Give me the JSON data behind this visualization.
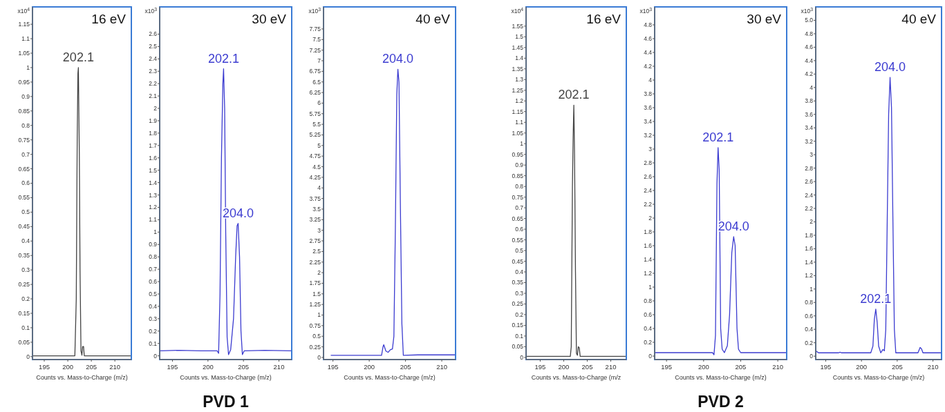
{
  "chart_data": [
    {
      "type": "line",
      "title": "16 eV",
      "xlabel": "Counts vs. Mass-to-Charge (m/z)",
      "ylabel": "x10$^{4}$",
      "xlim": [
        192.5,
        213.5
      ],
      "xticks": [
        195,
        200,
        205,
        210
      ],
      "ylim": [
        -0.01,
        1.21
      ],
      "yticks": [
        0,
        0.05,
        0.1,
        0.15,
        0.2,
        0.25,
        0.3,
        0.35,
        0.4,
        0.45,
        0.5,
        0.55,
        0.6,
        0.65,
        0.7,
        0.75,
        0.8,
        0.85,
        0.9,
        0.95,
        1,
        1.05,
        1.1,
        1.15
      ],
      "series": [
        {
          "color": "#444444",
          "x": [
            192.5,
            201.5,
            201.8,
            202.0,
            202.15,
            202.25,
            202.45,
            202.6,
            202.8,
            203.0,
            203.15,
            203.35,
            203.5,
            213.5
          ],
          "values": [
            0.003,
            0.003,
            0.2,
            0.75,
            0.98,
            1.0,
            0.7,
            0.3,
            0.02,
            0.005,
            0.035,
            0.035,
            0.003,
            0.003
          ]
        }
      ],
      "annotations": [
        {
          "text": "202.1",
          "x": 202.25,
          "y": 1.0
        }
      ]
    },
    {
      "type": "line",
      "title": "30 eV",
      "xlabel": "Counts vs. Mass-to-Charge (m/z)",
      "ylabel": "x10$^{3}$",
      "xlim": [
        193.2,
        211.8
      ],
      "xticks": [
        195,
        200,
        205,
        210
      ],
      "ylim": [
        -0.03,
        2.82
      ],
      "yticks": [
        0,
        0.1,
        0.2,
        0.3,
        0.4,
        0.5,
        0.6,
        0.7,
        0.8,
        0.9,
        1,
        1.1,
        1.2,
        1.3,
        1.4,
        1.5,
        1.6,
        1.7,
        1.8,
        1.9,
        2,
        2.1,
        2.2,
        2.3,
        2.4,
        2.5,
        2.6
      ],
      "series": [
        {
          "color": "#3b3bd0",
          "x": [
            193.2,
            196,
            199,
            201.3,
            201.5,
            201.7,
            201.9,
            202.1,
            202.2,
            202.35,
            202.5,
            202.7,
            202.9,
            203.2,
            203.6,
            203.9,
            204.1,
            204.25,
            204.45,
            204.65,
            204.85,
            205.1,
            208,
            211.8
          ],
          "values": [
            0.04,
            0.045,
            0.04,
            0.04,
            0.02,
            0.5,
            1.6,
            2.2,
            2.32,
            2.0,
            1.0,
            0.15,
            0.01,
            0.05,
            0.3,
            0.8,
            1.05,
            1.07,
            0.8,
            0.2,
            0.01,
            0.04,
            0.045,
            0.04
          ]
        }
      ],
      "annotations": [
        {
          "text": "202.1",
          "x": 202.2,
          "y": 2.32
        },
        {
          "text": "204.0",
          "x": 204.25,
          "y": 1.07
        },
        "PVD 1"
      ]
    },
    {
      "type": "line",
      "title": "40 eV",
      "xlabel": "Counts vs. Mass-to-Charge (m/z)",
      "ylabel": "x10$^{3}$",
      "xlim": [
        193.7,
        211.9
      ],
      "xticks": [
        195,
        200,
        205,
        210
      ],
      "ylim": [
        -0.05,
        8.27
      ],
      "yticks": [
        0,
        0.25,
        0.5,
        0.75,
        1,
        1.25,
        1.5,
        1.75,
        2,
        2.25,
        2.5,
        2.75,
        3,
        3.25,
        3.5,
        3.75,
        4,
        4.25,
        4.5,
        4.75,
        5,
        5.25,
        5.5,
        5.75,
        6,
        6.25,
        6.5,
        6.75,
        7,
        7.25,
        7.5,
        7.75
      ],
      "series": [
        {
          "color": "#3b3bd0",
          "x": [
            194.7,
            201.7,
            201.9,
            202.0,
            202.3,
            202.6,
            202.9,
            203.2,
            203.4,
            203.6,
            203.8,
            203.95,
            204.1,
            204.3,
            204.5,
            204.7,
            206.7,
            211.9
          ],
          "values": [
            0.05,
            0.05,
            0.25,
            0.3,
            0.15,
            0.12,
            0.18,
            0.2,
            0.5,
            3,
            6.2,
            6.8,
            6.5,
            3.5,
            0.8,
            0.05,
            0.06,
            0.06
          ]
        }
      ],
      "annotations": [
        {
          "text": "204.0",
          "x": 203.95,
          "y": 6.8
        }
      ]
    },
    {
      "type": "line",
      "title": "16 eV",
      "xlabel": "Counts vs. Mass-to-Charge (m/z",
      "ylabel": "x10$^{4}$",
      "xlim": [
        192,
        213.3
      ],
      "xticks": [
        195,
        200,
        205,
        210
      ],
      "ylim": [
        -0.01,
        1.64
      ],
      "yticks": [
        0,
        0.05,
        0.1,
        0.15,
        0.2,
        0.25,
        0.3,
        0.35,
        0.4,
        0.45,
        0.5,
        0.55,
        0.6,
        0.65,
        0.7,
        0.75,
        0.8,
        0.85,
        0.9,
        0.95,
        1,
        1.05,
        1.1,
        1.15,
        1.2,
        1.25,
        1.3,
        1.35,
        1.4,
        1.45,
        1.5,
        1.55
      ],
      "series": [
        {
          "color": "#444444",
          "x": [
            192,
            201.4,
            201.6,
            201.85,
            202.0,
            202.15,
            202.3,
            202.5,
            202.7,
            202.9,
            203.1,
            203.3,
            203.5,
            213.3
          ],
          "values": [
            0.005,
            0.005,
            0.05,
            0.8,
            1.03,
            1.18,
            0.95,
            0.4,
            0.02,
            0.01,
            0.05,
            0.045,
            0.005,
            0.005
          ]
        }
      ],
      "annotations": [
        {
          "text": "202.1",
          "x": 202.15,
          "y": 1.18
        }
      ]
    },
    {
      "type": "line",
      "title": "30 eV",
      "xlabel": "Counts vs. Mass-to-Charge (m/z)",
      "ylabel": "x10$^{3}$",
      "xlim": [
        193.4,
        211.2
      ],
      "xticks": [
        195,
        200,
        205,
        210
      ],
      "ylim": [
        -0.05,
        5.06
      ],
      "yticks": [
        0,
        0.2,
        0.4,
        0.6,
        0.8,
        1,
        1.2,
        1.4,
        1.6,
        1.8,
        2,
        2.2,
        2.4,
        2.6,
        2.8,
        3,
        3.2,
        3.4,
        3.6,
        3.8,
        4,
        4.2,
        4.4,
        4.6,
        4.8
      ],
      "series": [
        {
          "color": "#3b3bd0",
          "x": [
            193.4,
            201.2,
            201.4,
            201.6,
            201.8,
            201.95,
            202.1,
            202.3,
            202.5,
            202.8,
            203.2,
            203.5,
            203.8,
            204.05,
            204.25,
            204.5,
            204.7,
            205,
            211.2
          ],
          "values": [
            0.05,
            0.05,
            0.02,
            0.3,
            2.5,
            3.02,
            2.7,
            0.4,
            0.1,
            0.05,
            0.15,
            0.6,
            1.5,
            1.73,
            1.6,
            0.4,
            0.1,
            0.05,
            0.05
          ]
        }
      ],
      "annotations": [
        {
          "text": "202.1",
          "x": 201.95,
          "y": 3.02
        },
        {
          "text": "204.0",
          "x": 204.05,
          "y": 1.73
        },
        "PVD 2"
      ]
    },
    {
      "type": "line",
      "title": "40 eV",
      "xlabel": "Counts vs. Mass-to-Charge (m/z)",
      "ylabel": "x10$^{3}$",
      "xlim": [
        193.6,
        211.2
      ],
      "xticks": [
        195,
        200,
        205,
        210
      ],
      "ylim": [
        -0.05,
        5.2
      ],
      "yticks": [
        0,
        0.2,
        0.4,
        0.6,
        0.8,
        1,
        1.2,
        1.4,
        1.6,
        1.8,
        2,
        2.2,
        2.4,
        2.6,
        2.8,
        3,
        3.2,
        3.4,
        3.6,
        3.8,
        4,
        4.2,
        4.4,
        4.6,
        4.8,
        {
          "value": 5,
          "label": "5.0"
        }
      ],
      "series": [
        {
          "color": "#3b3bd0",
          "x": [
            193.6,
            194,
            196.8,
            197,
            197.2,
            200.8,
            201.3,
            201.6,
            201.8,
            202.0,
            202.2,
            202.4,
            202.7,
            203.0,
            203.2,
            203.4,
            203.6,
            203.8,
            204.0,
            204.2,
            204.4,
            204.6,
            204.8,
            207.9,
            208.2,
            208.4,
            208.6,
            211.2
          ],
          "values": [
            0.08,
            0.05,
            0.05,
            0.06,
            0.05,
            0.05,
            0.05,
            0.15,
            0.55,
            0.7,
            0.5,
            0.15,
            0.05,
            0.1,
            0.08,
            0.4,
            2.0,
            3.6,
            4.15,
            3.7,
            2.0,
            0.4,
            0.05,
            0.05,
            0.13,
            0.11,
            0.05,
            0.05
          ]
        }
      ],
      "annotations": [
        {
          "text": "202.1",
          "x": 202.0,
          "y": 0.7
        },
        {
          "text": "204.0",
          "x": 204.0,
          "y": 4.15
        }
      ]
    }
  ]
}
